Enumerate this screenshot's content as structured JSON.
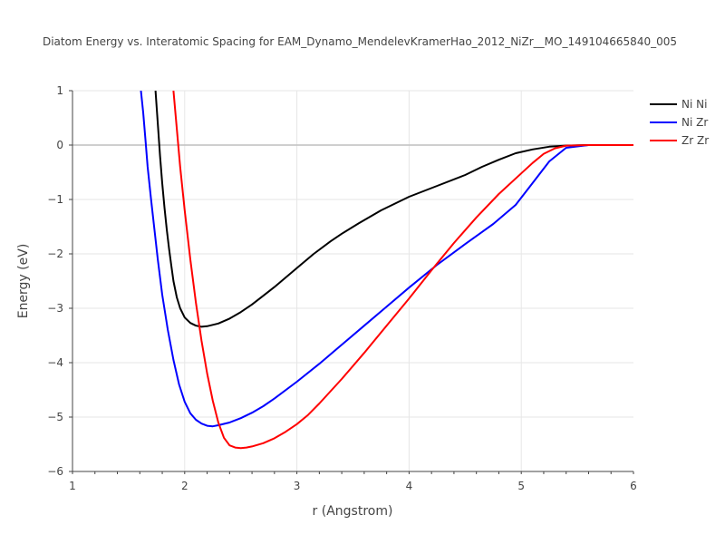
{
  "chart_data": {
    "type": "line",
    "title": "Diatom Energy vs. Interatomic Spacing for EAM_Dynamo_MendelevKramerHao_2012_NiZr__MO_149104665840_005",
    "xlabel": "r (Angstrom)",
    "ylabel": "Energy (eV)",
    "xlim": [
      1,
      6
    ],
    "ylim": [
      -6,
      1
    ],
    "x_ticks": [
      "1",
      "2",
      "3",
      "4",
      "5",
      "6"
    ],
    "y_ticks": [
      "1",
      "0",
      "−1",
      "−2",
      "−3",
      "−4",
      "−5",
      "−6"
    ],
    "grid": true,
    "legend_position": "top-right",
    "series": [
      {
        "name": "Ni Ni",
        "color": "#000000",
        "x": [
          1.74,
          1.76,
          1.78,
          1.8,
          1.82,
          1.84,
          1.86,
          1.88,
          1.9,
          1.93,
          1.96,
          2.0,
          2.05,
          2.1,
          2.15,
          2.2,
          2.3,
          2.4,
          2.5,
          2.6,
          2.7,
          2.8,
          3.0,
          3.15,
          3.3,
          3.4,
          3.55,
          3.75,
          4.0,
          4.25,
          4.5,
          4.65,
          4.8,
          4.95,
          5.1,
          5.25,
          5.4,
          5.6,
          6.0
        ],
        "y": [
          1.0,
          0.4,
          -0.2,
          -0.7,
          -1.15,
          -1.55,
          -1.9,
          -2.2,
          -2.5,
          -2.8,
          -3.0,
          -3.17,
          -3.27,
          -3.32,
          -3.34,
          -3.33,
          -3.28,
          -3.19,
          -3.07,
          -2.93,
          -2.77,
          -2.61,
          -2.26,
          -2.0,
          -1.77,
          -1.63,
          -1.44,
          -1.2,
          -0.95,
          -0.75,
          -0.55,
          -0.4,
          -0.27,
          -0.15,
          -0.08,
          -0.03,
          -0.01,
          0,
          0
        ]
      },
      {
        "name": "Ni Zr",
        "color": "#0000ff",
        "x": [
          1.61,
          1.63,
          1.65,
          1.67,
          1.7,
          1.73,
          1.76,
          1.8,
          1.85,
          1.9,
          1.95,
          2.0,
          2.05,
          2.1,
          2.15,
          2.2,
          2.25,
          2.3,
          2.4,
          2.5,
          2.6,
          2.7,
          2.8,
          3.0,
          3.2,
          3.4,
          3.6,
          3.8,
          4.0,
          4.25,
          4.5,
          4.75,
          4.95,
          5.1,
          5.25,
          5.4,
          5.6,
          6.0
        ],
        "y": [
          1.0,
          0.6,
          0.1,
          -0.4,
          -1.0,
          -1.55,
          -2.1,
          -2.75,
          -3.4,
          -3.95,
          -4.4,
          -4.72,
          -4.93,
          -5.05,
          -5.12,
          -5.16,
          -5.17,
          -5.15,
          -5.1,
          -5.02,
          -4.92,
          -4.8,
          -4.66,
          -4.35,
          -4.02,
          -3.67,
          -3.32,
          -2.97,
          -2.62,
          -2.2,
          -1.82,
          -1.45,
          -1.1,
          -0.7,
          -0.3,
          -0.05,
          0,
          0
        ]
      },
      {
        "name": "Zr Zr",
        "color": "#ff0000",
        "x": [
          1.9,
          1.93,
          1.96,
          2.0,
          2.05,
          2.1,
          2.15,
          2.2,
          2.25,
          2.3,
          2.35,
          2.4,
          2.45,
          2.5,
          2.55,
          2.6,
          2.7,
          2.8,
          2.9,
          3.0,
          3.1,
          3.2,
          3.4,
          3.6,
          3.8,
          4.0,
          4.2,
          4.4,
          4.6,
          4.8,
          5.0,
          5.1,
          5.2,
          5.3,
          5.4,
          5.6,
          6.0
        ],
        "y": [
          1.0,
          0.3,
          -0.4,
          -1.2,
          -2.1,
          -2.9,
          -3.6,
          -4.2,
          -4.7,
          -5.1,
          -5.38,
          -5.52,
          -5.56,
          -5.57,
          -5.56,
          -5.54,
          -5.48,
          -5.39,
          -5.27,
          -5.13,
          -4.96,
          -4.75,
          -4.3,
          -3.82,
          -3.32,
          -2.82,
          -2.3,
          -1.8,
          -1.33,
          -0.9,
          -0.52,
          -0.33,
          -0.16,
          -0.06,
          -0.01,
          0,
          0
        ]
      }
    ]
  }
}
